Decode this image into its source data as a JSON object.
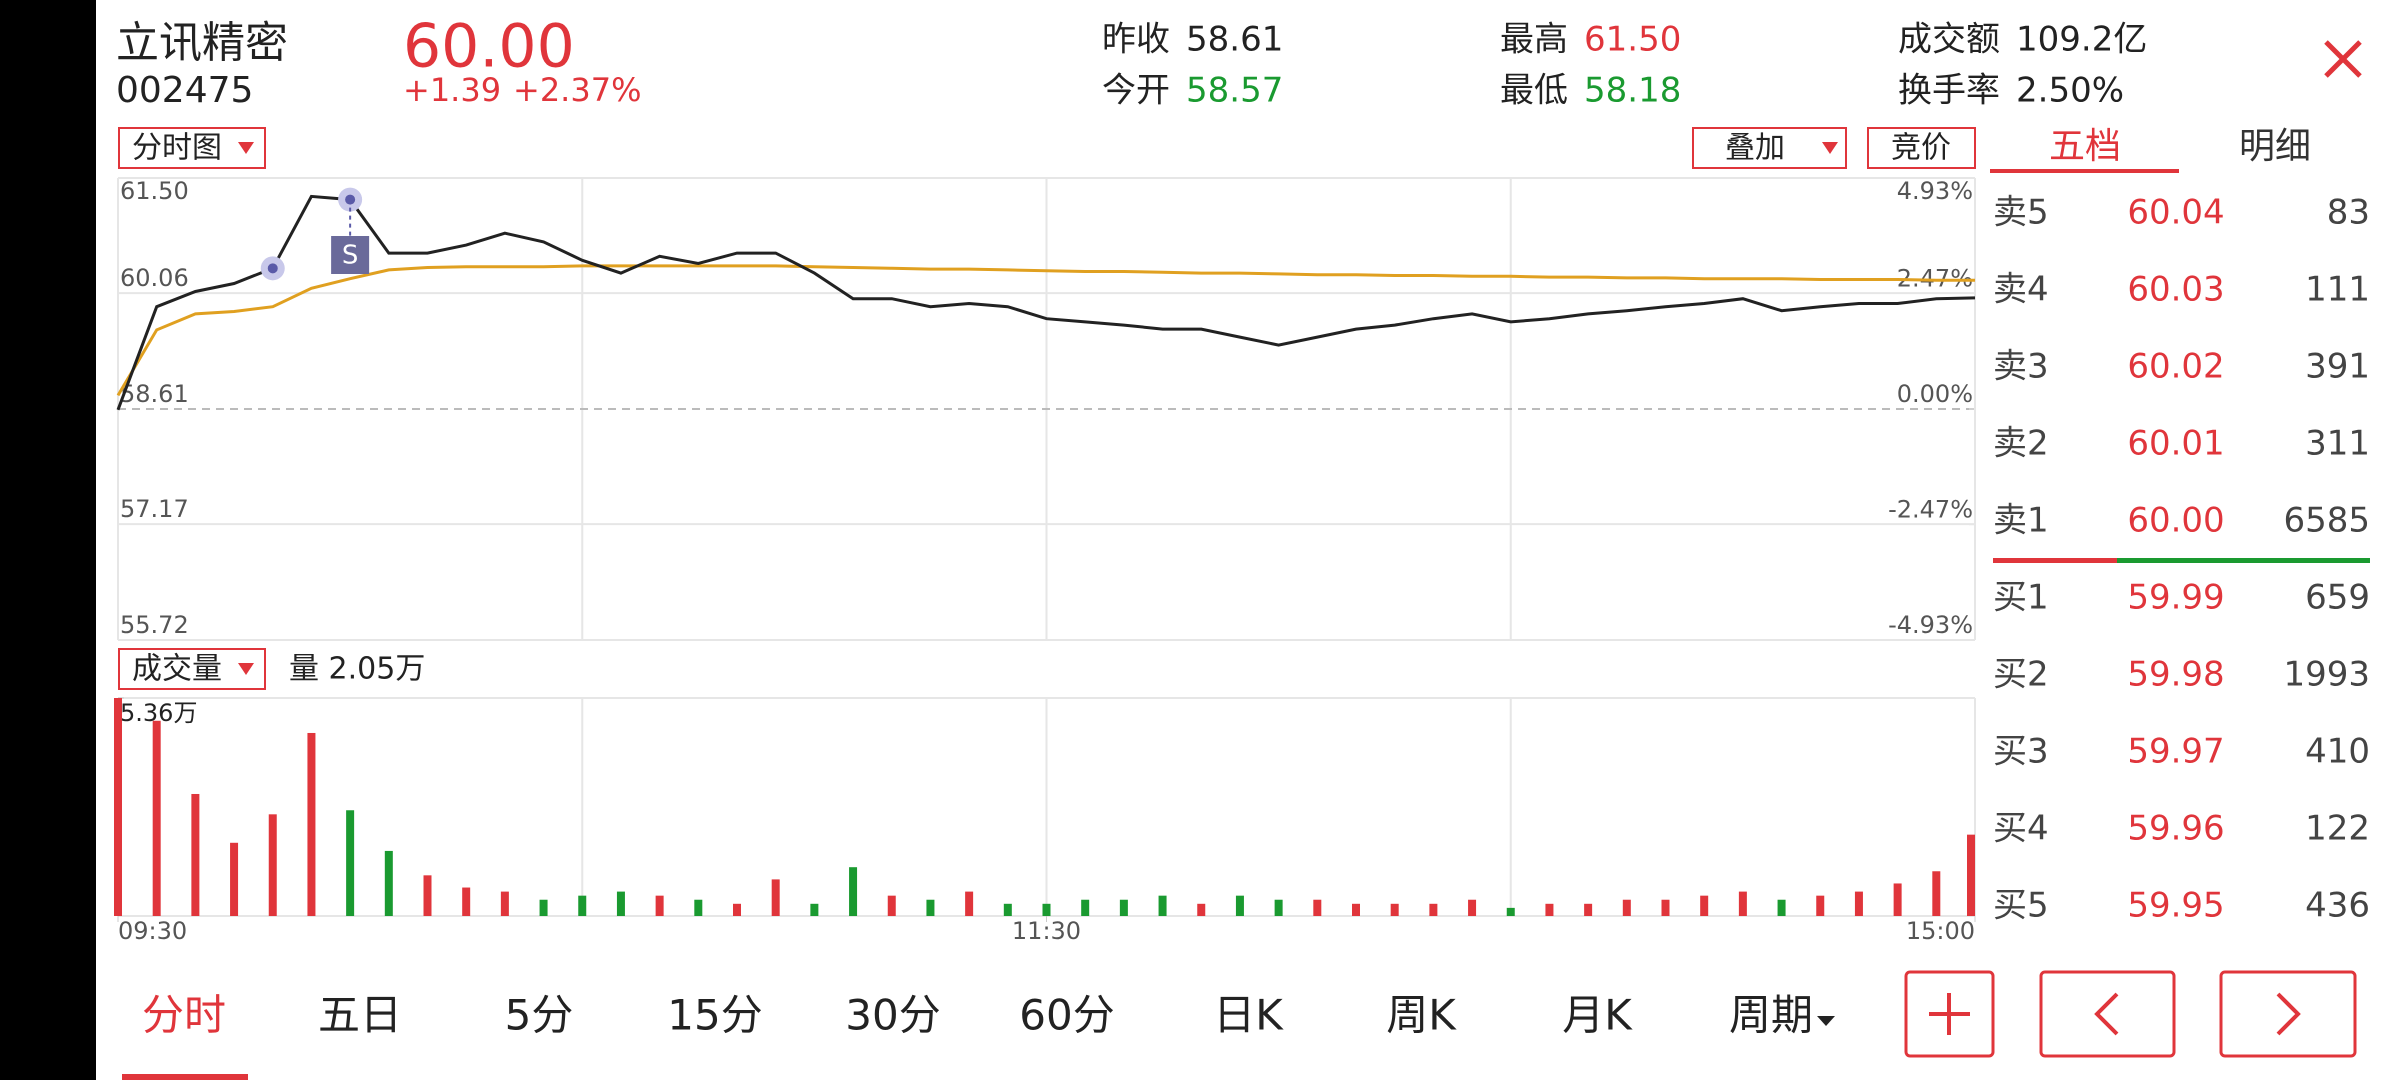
{
  "header": {
    "name": "立讯精密",
    "code": "002475",
    "price": "60.00",
    "change": "+1.39",
    "change_pct": "+2.37%",
    "stats": [
      {
        "label": "昨收",
        "value": "58.61",
        "color": "#222222"
      },
      {
        "label": "今开",
        "value": "58.57",
        "color": "#1a9a30"
      },
      {
        "label": "最高",
        "value": "61.50",
        "color": "#e0353b"
      },
      {
        "label": "最低",
        "value": "58.18",
        "color": "#1a9a30"
      },
      {
        "label": "成交额",
        "value": "109.2亿",
        "color": "#222222"
      },
      {
        "label": "换手率",
        "value": "2.50%",
        "color": "#222222"
      }
    ]
  },
  "toolbar": {
    "chart_mode": "分时图",
    "overlay": "叠加",
    "auction": "竞价"
  },
  "side_tabs": [
    "五档",
    "明细"
  ],
  "chart_data": [
    {
      "type": "line",
      "marker": "S",
      "x": [
        0,
        5,
        10,
        15,
        20,
        25,
        30,
        35,
        40,
        45,
        50,
        55,
        60,
        65,
        70,
        75,
        80,
        85,
        90,
        95,
        100,
        105,
        110,
        115,
        120,
        125,
        130,
        135,
        140,
        145,
        150,
        155,
        160,
        165,
        170,
        175,
        180,
        185,
        190,
        195,
        200,
        205,
        210,
        215,
        220,
        225,
        230,
        235,
        240
      ],
      "xlim": [
        0,
        240
      ],
      "xticks": [
        {
          "value": 0,
          "label": "09:30"
        },
        {
          "value": 120,
          "label": "11:30"
        },
        {
          "value": 240,
          "label": "15:00"
        }
      ],
      "ylim": [
        55.72,
        61.5
      ],
      "yticks": [
        {
          "value": 61.5,
          "label": "61.50"
        },
        60.06,
        58.61,
        57.17,
        55.72
      ],
      "y2lim": [
        -4.93,
        4.93
      ],
      "y2ticks": [
        {
          "value": 4.93,
          "label": "4.93%"
        },
        {
          "value": 2.47,
          "label": "2.47%"
        },
        {
          "value": 0,
          "label": "0.00%"
        },
        {
          "value": -2.47,
          "label": "-2.47%"
        },
        {
          "value": -4.93,
          "label": "-4.93%"
        }
      ],
      "series": [
        {
          "color": "#222222",
          "values": [
            58.6,
            59.89,
            60.08,
            60.18,
            60.37,
            61.27,
            61.23,
            60.56,
            60.56,
            60.66,
            60.81,
            60.7,
            60.47,
            60.31,
            60.52,
            60.43,
            60.56,
            60.56,
            60.31,
            59.99,
            59.99,
            59.89,
            59.93,
            59.89,
            59.74,
            59.7,
            59.66,
            59.61,
            59.61,
            59.51,
            59.41,
            59.51,
            59.61,
            59.66,
            59.74,
            59.8,
            59.7,
            59.74,
            59.8,
            59.84,
            59.89,
            59.93,
            59.99,
            59.84,
            59.89,
            59.93,
            59.93,
            59.99,
            60.0
          ]
        },
        {
          "color": "#e0a020",
          "values": [
            58.78,
            59.6,
            59.8,
            59.83,
            59.89,
            60.12,
            60.24,
            60.35,
            60.38,
            60.39,
            60.39,
            60.39,
            60.4,
            60.4,
            60.4,
            60.4,
            60.4,
            60.4,
            60.39,
            60.38,
            60.37,
            60.36,
            60.36,
            60.35,
            60.34,
            60.33,
            60.33,
            60.32,
            60.31,
            60.31,
            60.3,
            60.29,
            60.29,
            60.28,
            60.28,
            60.27,
            60.27,
            60.26,
            60.26,
            60.25,
            60.25,
            60.24,
            60.24,
            60.24,
            60.23,
            60.23,
            60.23,
            60.22,
            60.22
          ]
        }
      ]
    },
    {
      "type": "bar",
      "label": "成交量",
      "summary": "量 2.05万",
      "x": [
        0,
        5,
        10,
        15,
        20,
        25,
        30,
        35,
        40,
        45,
        50,
        55,
        60,
        65,
        70,
        75,
        80,
        85,
        90,
        95,
        100,
        105,
        110,
        115,
        120,
        125,
        130,
        135,
        140,
        145,
        150,
        155,
        160,
        165,
        170,
        175,
        180,
        185,
        190,
        195,
        200,
        205,
        210,
        215,
        220,
        225,
        230,
        235,
        240
      ],
      "xlim": [
        0,
        240
      ],
      "values": [
        5.36,
        4.8,
        3.0,
        1.8,
        2.5,
        4.5,
        2.6,
        1.6,
        1.0,
        0.7,
        0.6,
        0.4,
        0.5,
        0.6,
        0.5,
        0.4,
        0.3,
        0.9,
        0.3,
        1.2,
        0.5,
        0.4,
        0.6,
        0.3,
        0.3,
        0.4,
        0.4,
        0.5,
        0.3,
        0.5,
        0.4,
        0.4,
        0.3,
        0.3,
        0.3,
        0.4,
        0.2,
        0.3,
        0.3,
        0.4,
        0.4,
        0.5,
        0.6,
        0.4,
        0.5,
        0.6,
        0.8,
        1.1,
        2.0
      ],
      "ylim": [
        0,
        5.36
      ],
      "yticks": [
        {
          "value": 5.36,
          "label": "5.36万"
        }
      ],
      "up_color": "#e0353b",
      "down_color": "#1a9a30"
    }
  ],
  "order_book": [
    {
      "level": "卖5",
      "price": "60.04",
      "volume": "83"
    },
    {
      "level": "卖4",
      "price": "60.03",
      "volume": "111"
    },
    {
      "level": "卖3",
      "price": "60.02",
      "volume": "391"
    },
    {
      "level": "卖2",
      "price": "60.01",
      "volume": "311"
    },
    {
      "level": "卖1",
      "price": "60.00",
      "volume": "6585"
    },
    {
      "level": "买1",
      "price": "59.99",
      "volume": "659"
    },
    {
      "level": "买2",
      "price": "59.98",
      "volume": "1993"
    },
    {
      "level": "买3",
      "price": "59.97",
      "volume": "410"
    },
    {
      "level": "买4",
      "price": "59.96",
      "volume": "122"
    },
    {
      "level": "买5",
      "price": "59.95",
      "volume": "436"
    }
  ],
  "period_tabs": [
    "分时",
    "五日",
    "5分",
    "15分",
    "30分",
    "60分",
    "日K",
    "周K",
    "月K",
    "周期"
  ]
}
